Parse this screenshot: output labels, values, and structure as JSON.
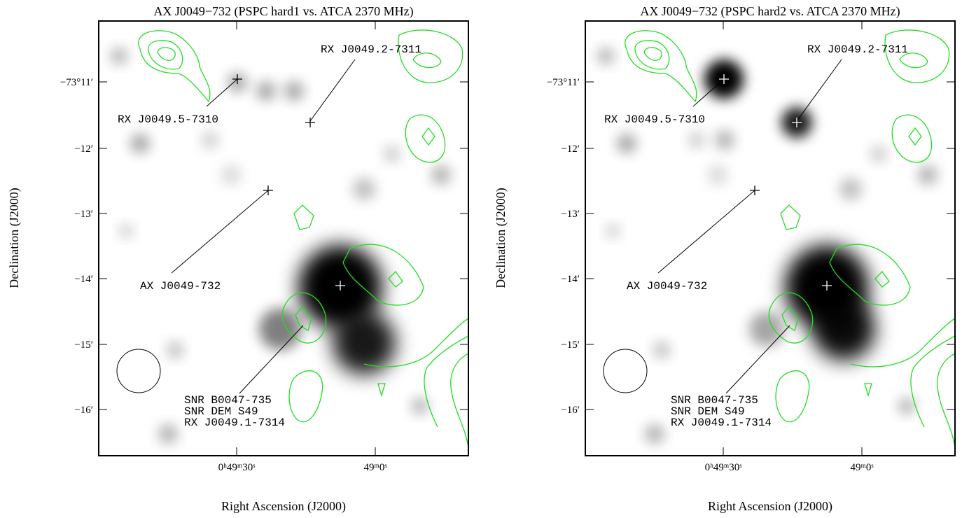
{
  "panels": [
    {
      "title": "AX J0049−732 (PSPC hard1 vs. ATCA 2370 MHz)",
      "y_axis_label": "Declination (J2000)",
      "x_axis_label": "Right Ascension (J2000)",
      "yticks": [
        "−73°11′",
        "−12′",
        "−13′",
        "−14′",
        "−15′",
        "−16′"
      ],
      "xticks": [
        "0ʰ49ᵐ30ˢ",
        "49ᵐ0ˢ"
      ],
      "annotations": [
        "RX J0049.2-7311",
        "RX J0049.5-7310",
        "AX J0049-732",
        "SNR B0047-735",
        "SNR DEM S49",
        "RX J0049.1-7314"
      ]
    },
    {
      "title": "AX J0049−732 (PSPC hard2 vs. ATCA 2370 MHz)",
      "y_axis_label": "Declination (J2000)",
      "x_axis_label": "Right Ascension (J2000)",
      "yticks": [
        "−73°11′",
        "−12′",
        "−13′",
        "−14′",
        "−15′",
        "−16′"
      ],
      "xticks": [
        "0ʰ49ᵐ30ˢ",
        "49ᵐ0ˢ"
      ],
      "annotations": [
        "RX J0049.2-7311",
        "RX J0049.5-7310",
        "AX J0049-732",
        "SNR B0047-735",
        "SNR DEM S49",
        "RX J0049.1-7314"
      ]
    }
  ]
}
